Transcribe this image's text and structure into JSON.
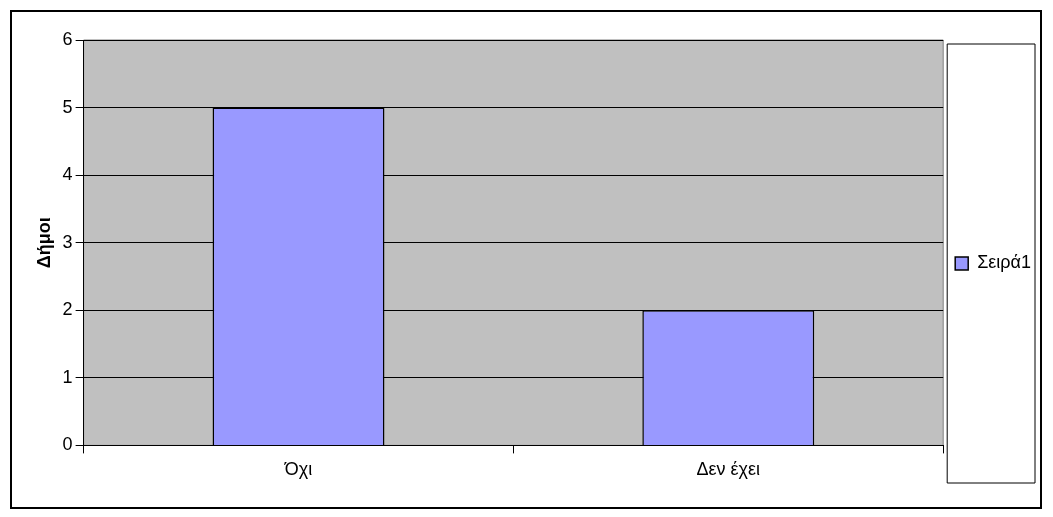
{
  "chart_data": {
    "type": "bar",
    "ylabel": "Δήμοι",
    "categories": [
      "Όχι",
      "Δεν έχει"
    ],
    "series": [
      {
        "name": "Σειρά1",
        "color": "#9999ff",
        "values": [
          5,
          2
        ]
      }
    ],
    "ylim": [
      0,
      6
    ],
    "yticks": [
      0,
      1,
      2,
      3,
      4,
      5,
      6
    ],
    "grid": "y",
    "legend": "right"
  }
}
